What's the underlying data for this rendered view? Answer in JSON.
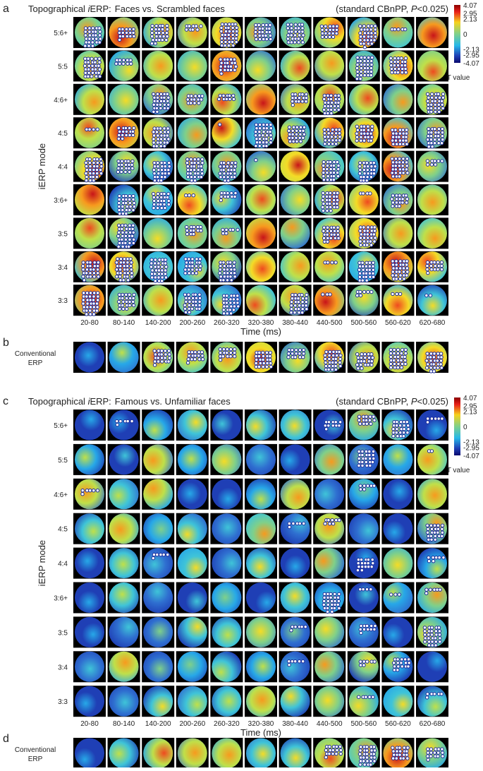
{
  "panels": [
    {
      "label": "a",
      "title": [
        "Topographical ",
        "i",
        "ERP:",
        "Faces vs. Scrambled faces"
      ],
      "note": [
        "(standard CBnPP, ",
        "P",
        "<0.025)"
      ],
      "y_axis_label": "iERP mode",
      "rows": [
        "5:6+",
        "5:5",
        "4:6+",
        "4:5",
        "4:4",
        "3:6+",
        "3:5",
        "3:4",
        "3:3"
      ],
      "columns": [
        "20-80",
        "80-140",
        "140-200",
        "200-260",
        "260-320",
        "320-380",
        "380-440",
        "440-500",
        "500-560",
        "560-620",
        "620-680"
      ],
      "x_axis_label": "Time (ms)",
      "colorbar": {
        "ticks": [
          4.07,
          2.95,
          2.13,
          0,
          -2.13,
          -2.95,
          -4.07
        ],
        "label": "T value"
      }
    },
    {
      "label": "b",
      "row_label": [
        "Conventional",
        "ERP"
      ]
    },
    {
      "label": "c",
      "title": [
        "Topographical ",
        "i",
        "ERP:",
        "Famous vs. Unfamiliar faces"
      ],
      "note": [
        "(standard CBnPP, ",
        "P",
        "<0.025)"
      ],
      "y_axis_label": "iERP mode",
      "rows": [
        "5:6+",
        "5:5",
        "4:6+",
        "4:5",
        "4:4",
        "3:6+",
        "3:5",
        "3:4",
        "3:3"
      ],
      "columns": [
        "20-80",
        "80-140",
        "140-200",
        "200-260",
        "260-320",
        "320-380",
        "380-440",
        "440-500",
        "500-560",
        "560-620",
        "620-680"
      ],
      "x_axis_label": "Time (ms)",
      "colorbar": {
        "ticks": [
          4.07,
          2.95,
          2.13,
          0,
          -2.13,
          -2.95,
          -4.07
        ],
        "label": "T value"
      }
    },
    {
      "label": "d",
      "row_label": [
        "Conventional",
        "ERP"
      ]
    }
  ]
}
